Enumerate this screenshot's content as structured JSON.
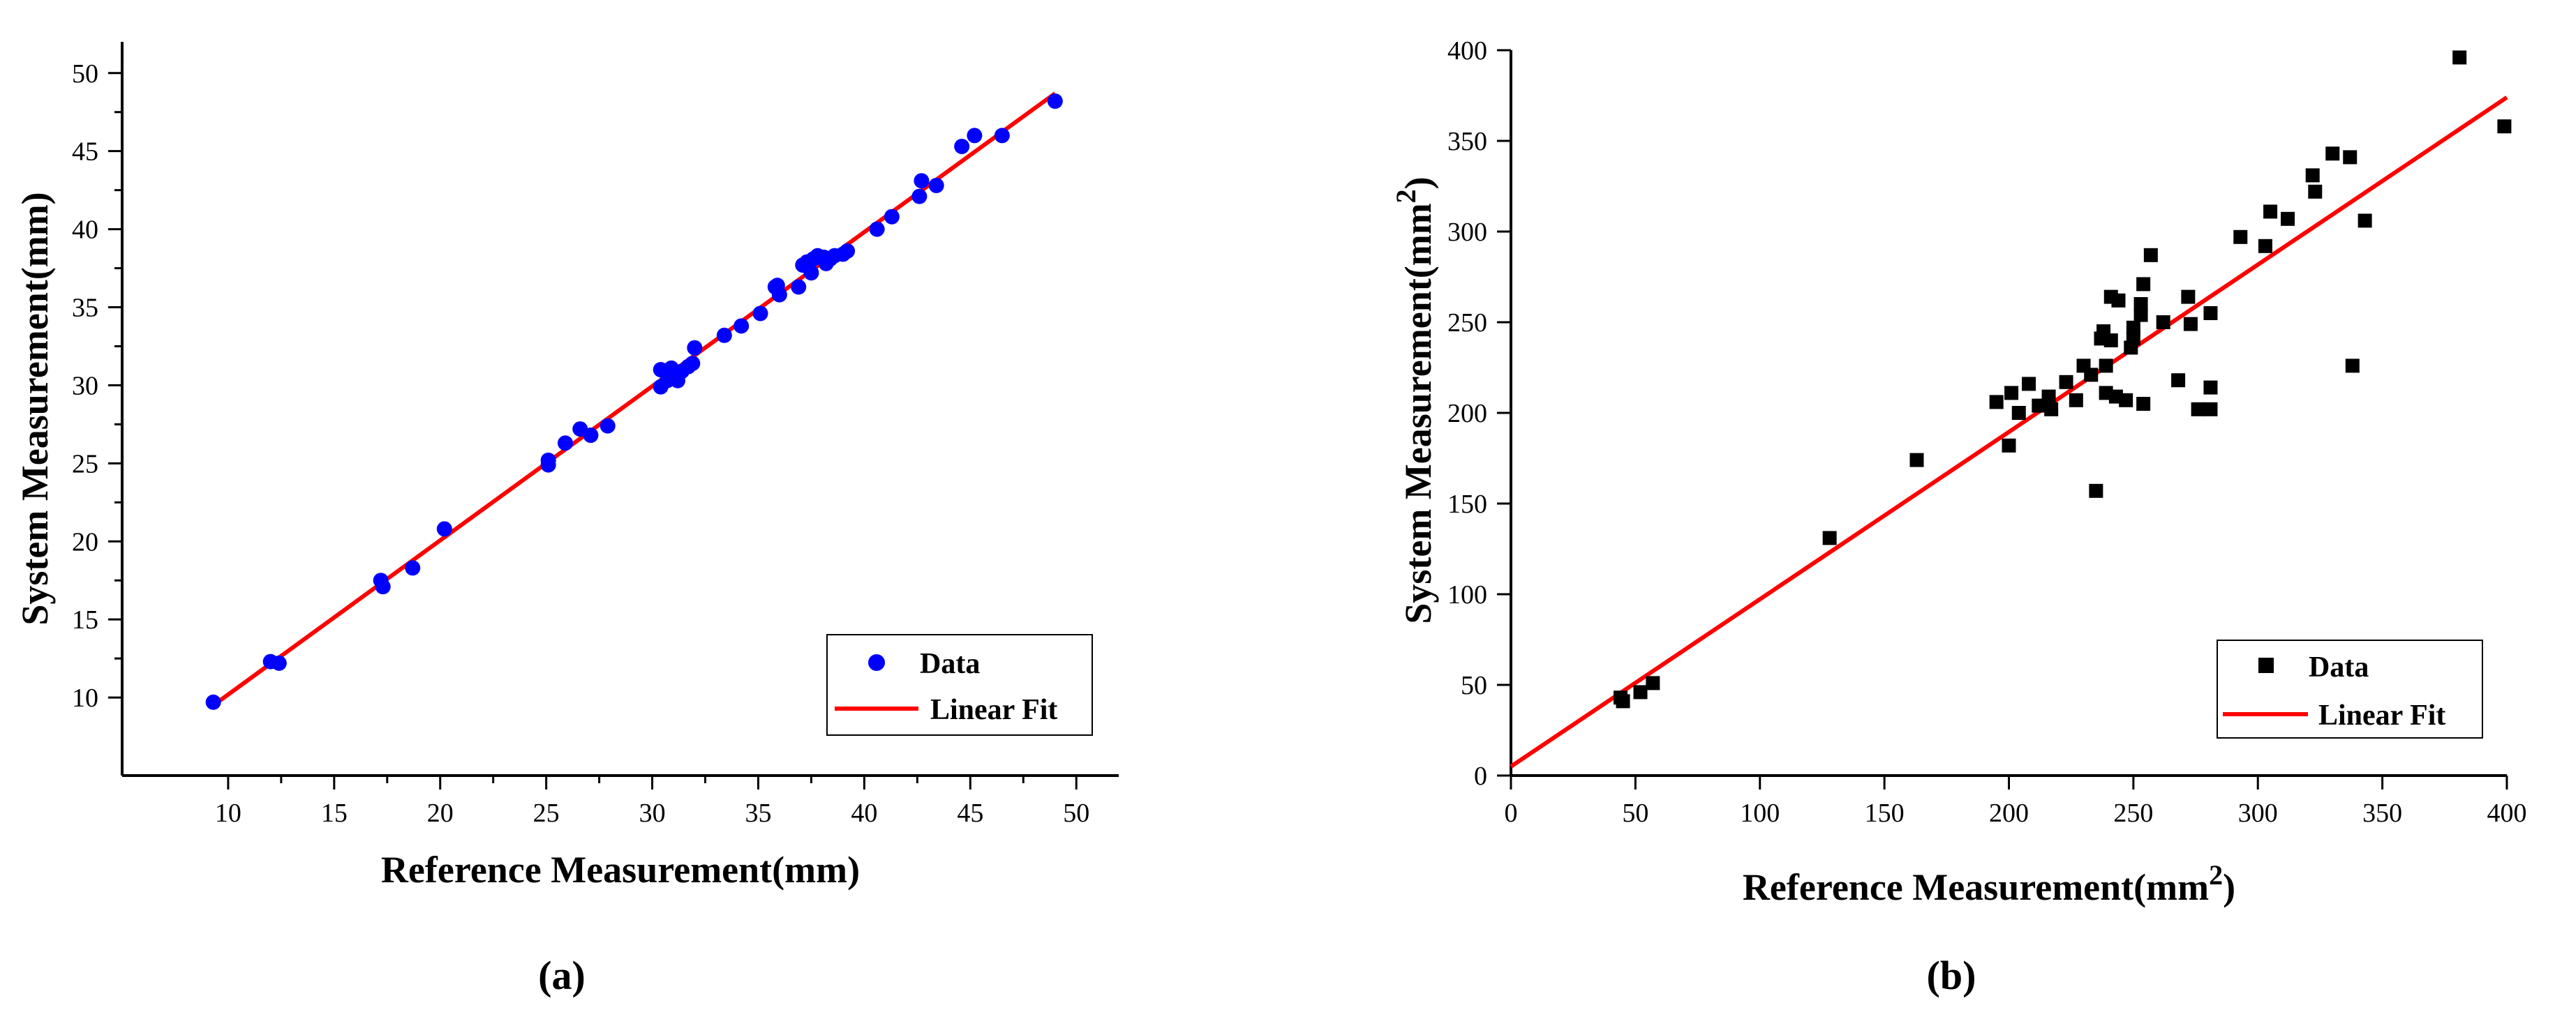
{
  "chart_data": [
    {
      "type": "scatter",
      "panel": "(a)",
      "xlabel": "Reference Measurement(mm)",
      "ylabel": "System Measurement(mm)",
      "xlim": [
        5,
        52
      ],
      "ylim": [
        5,
        52
      ],
      "xticks": [
        10,
        15,
        20,
        25,
        30,
        35,
        40,
        45,
        50
      ],
      "yticks": [
        10,
        15,
        20,
        25,
        30,
        35,
        40,
        45,
        50
      ],
      "grid": false,
      "legend_position": "bottom-right",
      "series": [
        {
          "name": "Data",
          "marker": "circle",
          "color": "#0000ff",
          "points": [
            [
              9.3,
              9.7
            ],
            [
              12.0,
              12.3
            ],
            [
              12.4,
              12.2
            ],
            [
              17.2,
              17.5
            ],
            [
              17.3,
              17.1
            ],
            [
              18.7,
              18.3
            ],
            [
              20.2,
              20.8
            ],
            [
              25.1,
              25.2
            ],
            [
              25.1,
              24.9
            ],
            [
              25.9,
              26.3
            ],
            [
              26.6,
              27.2
            ],
            [
              27.1,
              26.8
            ],
            [
              27.9,
              27.4
            ],
            [
              30.4,
              31.0
            ],
            [
              30.4,
              29.9
            ],
            [
              30.7,
              30.3
            ],
            [
              30.9,
              31.1
            ],
            [
              31.0,
              30.5
            ],
            [
              31.2,
              30.3
            ],
            [
              31.4,
              30.9
            ],
            [
              31.7,
              31.2
            ],
            [
              31.9,
              31.4
            ],
            [
              32.0,
              32.4
            ],
            [
              33.4,
              33.2
            ],
            [
              34.2,
              33.8
            ],
            [
              35.1,
              34.6
            ],
            [
              35.8,
              36.3
            ],
            [
              35.9,
              36.4
            ],
            [
              36.0,
              35.8
            ],
            [
              36.9,
              36.3
            ],
            [
              37.1,
              37.7
            ],
            [
              37.3,
              37.9
            ],
            [
              37.5,
              37.2
            ],
            [
              37.6,
              38.1
            ],
            [
              37.8,
              38.3
            ],
            [
              38.1,
              38.2
            ],
            [
              38.2,
              37.8
            ],
            [
              38.4,
              38.1
            ],
            [
              38.6,
              38.3
            ],
            [
              39.0,
              38.4
            ],
            [
              39.2,
              38.6
            ],
            [
              40.6,
              40.0
            ],
            [
              41.3,
              40.8
            ],
            [
              42.6,
              42.1
            ],
            [
              42.7,
              43.1
            ],
            [
              43.4,
              42.8
            ],
            [
              44.6,
              45.3
            ],
            [
              45.2,
              46.0
            ],
            [
              46.5,
              46.0
            ],
            [
              49.0,
              48.2
            ]
          ]
        },
        {
          "name": "Linear Fit",
          "type": "line",
          "color": "#ff0000",
          "x": [
            9.3,
            49.0
          ],
          "y": [
            9.5,
            48.7
          ]
        }
      ]
    },
    {
      "type": "scatter",
      "panel": "(b)",
      "xlabel": "Reference Measurement(mm",
      "xlabel_sup": "2",
      "xlabel_tail": ")",
      "ylabel": "System Measurement(mm",
      "ylabel_sup": "2",
      "ylabel_tail": ")",
      "xlim": [
        0,
        400
      ],
      "ylim": [
        0,
        400
      ],
      "xticks": [
        0,
        50,
        100,
        150,
        200,
        250,
        300,
        350,
        400
      ],
      "yticks": [
        0,
        50,
        100,
        150,
        200,
        250,
        300,
        350,
        400
      ],
      "grid": false,
      "legend_position": "bottom-right",
      "series": [
        {
          "name": "Data",
          "marker": "square",
          "color": "#000000",
          "points": [
            [
              45,
              41
            ],
            [
              44,
              43
            ],
            [
              52,
              46
            ],
            [
              57,
              51
            ],
            [
              128,
              131
            ],
            [
              163,
              174
            ],
            [
              195,
              206
            ],
            [
              200,
              182
            ],
            [
              201,
              211
            ],
            [
              204,
              200
            ],
            [
              208,
              216
            ],
            [
              212,
              204
            ],
            [
              216,
              209
            ],
            [
              217,
              202
            ],
            [
              223,
              217
            ],
            [
              227,
              207
            ],
            [
              230,
              226
            ],
            [
              233,
              221
            ],
            [
              235,
              157
            ],
            [
              237,
              241
            ],
            [
              238,
              245
            ],
            [
              239,
              226
            ],
            [
              239,
              211
            ],
            [
              241,
              240
            ],
            [
              241,
              264
            ],
            [
              243,
              209
            ],
            [
              244,
              262
            ],
            [
              247,
              207
            ],
            [
              249,
              236
            ],
            [
              250,
              241
            ],
            [
              250,
              247
            ],
            [
              253,
              260
            ],
            [
              253,
              254
            ],
            [
              254,
              271
            ],
            [
              254,
              205
            ],
            [
              257,
              287
            ],
            [
              262,
              250
            ],
            [
              268,
              218
            ],
            [
              272,
              264
            ],
            [
              273,
              249
            ],
            [
              276,
              202
            ],
            [
              281,
              202
            ],
            [
              281,
              214
            ],
            [
              281,
              255
            ],
            [
              293,
              297
            ],
            [
              303,
              292
            ],
            [
              305,
              311
            ],
            [
              312,
              307
            ],
            [
              322,
              331
            ],
            [
              323,
              322
            ],
            [
              330,
              343
            ],
            [
              337,
              341
            ],
            [
              338,
              226
            ],
            [
              343,
              306
            ],
            [
              381,
              396
            ],
            [
              399,
              358
            ]
          ]
        },
        {
          "name": "Linear Fit",
          "type": "line",
          "color": "#ff0000",
          "x": [
            0,
            400
          ],
          "y": [
            5,
            374
          ]
        }
      ]
    }
  ]
}
